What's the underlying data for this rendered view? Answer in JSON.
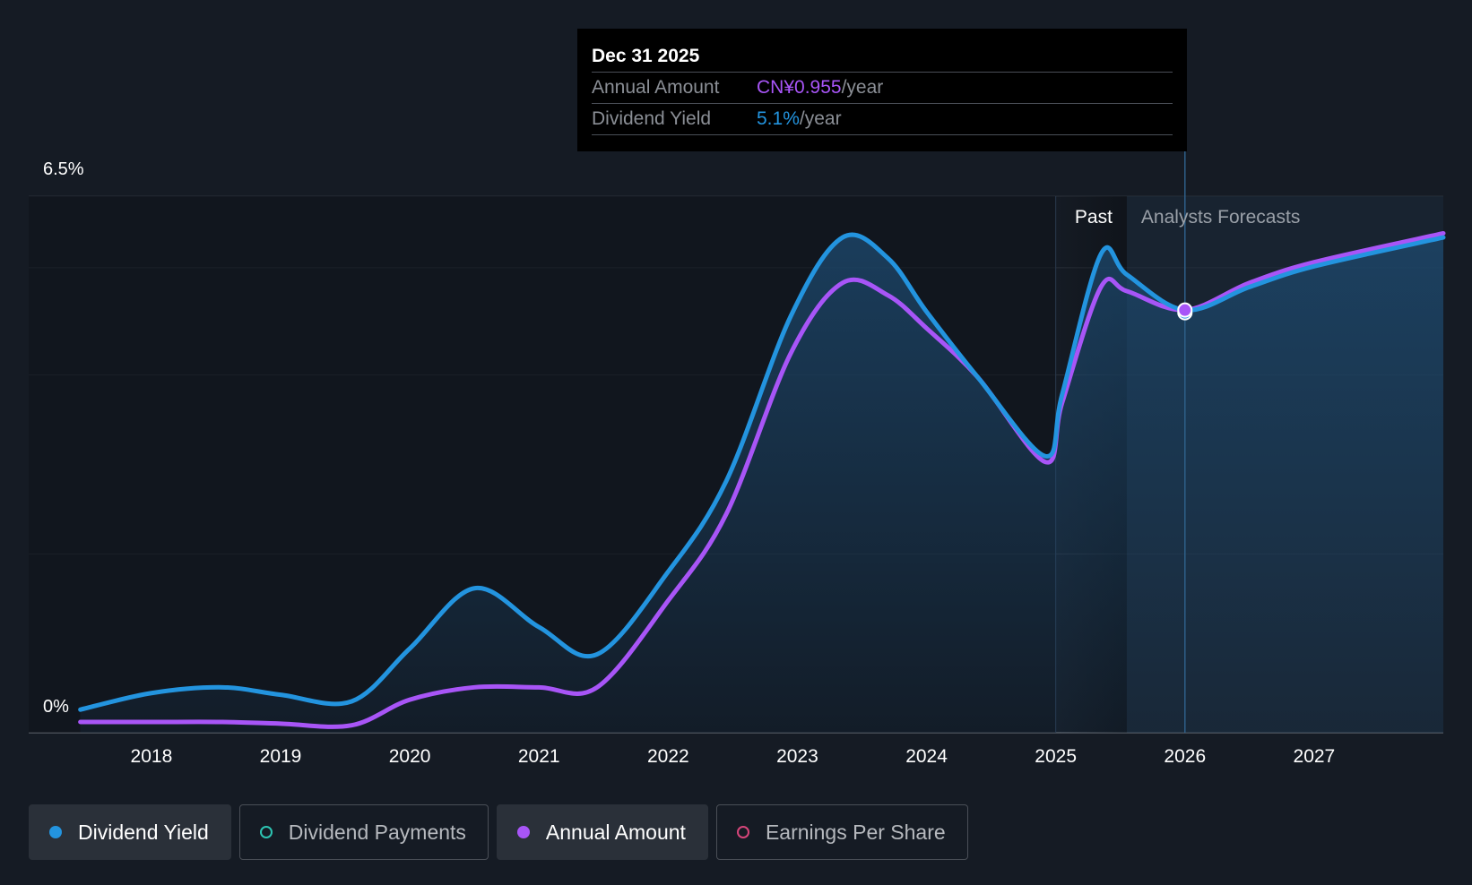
{
  "tooltip": {
    "date": "Dec 31 2025",
    "rows": [
      {
        "label": "Annual Amount",
        "value": "CN¥0.955",
        "unit": "/year",
        "color": "#a855f7"
      },
      {
        "label": "Dividend Yield",
        "value": "5.1%",
        "unit": "/year",
        "color": "#2394df"
      }
    ]
  },
  "legend": [
    {
      "label": "Dividend Yield",
      "color": "#2394df",
      "active": true
    },
    {
      "label": "Dividend Payments",
      "color": "#2dc4b2",
      "active": false
    },
    {
      "label": "Annual Amount",
      "color": "#a855f7",
      "active": true
    },
    {
      "label": "Earnings Per Share",
      "color": "#d6457a",
      "active": false
    }
  ],
  "chart_data": {
    "type": "line",
    "x_ticks": [
      "2018",
      "2019",
      "2020",
      "2021",
      "2022",
      "2023",
      "2024",
      "2025",
      "2026",
      "2027"
    ],
    "y_tick_labels": [
      "6.5%",
      "0%"
    ],
    "ylim": [
      0,
      6.5
    ],
    "xlim": [
      2017.05,
      2028.0
    ],
    "regions": {
      "past_label": "Past",
      "forecast_label": "Analysts Forecasts",
      "past_start": 2025.0,
      "forecast_start": 2025.55,
      "current": 2026.0
    },
    "series": [
      {
        "name": "Dividend Yield",
        "color": "#2394df",
        "x": [
          2017.45,
          2018.0,
          2018.55,
          2019.0,
          2019.55,
          2020.0,
          2020.5,
          2021.0,
          2021.45,
          2022.0,
          2022.45,
          2022.95,
          2023.35,
          2023.7,
          2024.0,
          2024.4,
          2024.92,
          2025.05,
          2025.35,
          2025.55,
          2026.0,
          2026.5,
          2027.0,
          2028.0
        ],
        "values": [
          0.28,
          0.48,
          0.55,
          0.46,
          0.38,
          1.02,
          1.75,
          1.28,
          0.95,
          1.95,
          3.05,
          5.05,
          6.0,
          5.75,
          5.1,
          4.3,
          3.35,
          4.1,
          5.8,
          5.55,
          5.12,
          5.4,
          5.65,
          6.0
        ]
      },
      {
        "name": "Annual Amount",
        "color": "#a855f7",
        "x": [
          2017.45,
          2018.0,
          2018.55,
          2019.0,
          2019.55,
          2020.0,
          2020.5,
          2021.0,
          2021.45,
          2022.0,
          2022.45,
          2022.95,
          2023.35,
          2023.7,
          2024.0,
          2024.4,
          2024.92,
          2025.05,
          2025.35,
          2025.55,
          2026.0,
          2026.5,
          2027.0,
          2028.0
        ],
        "values": [
          0.13,
          0.13,
          0.13,
          0.11,
          0.09,
          0.4,
          0.55,
          0.55,
          0.55,
          1.6,
          2.65,
          4.6,
          5.45,
          5.3,
          4.9,
          4.3,
          3.28,
          4.0,
          5.4,
          5.35,
          5.12,
          5.45,
          5.7,
          6.05
        ]
      }
    ],
    "tooltip_x": 2026.0
  }
}
